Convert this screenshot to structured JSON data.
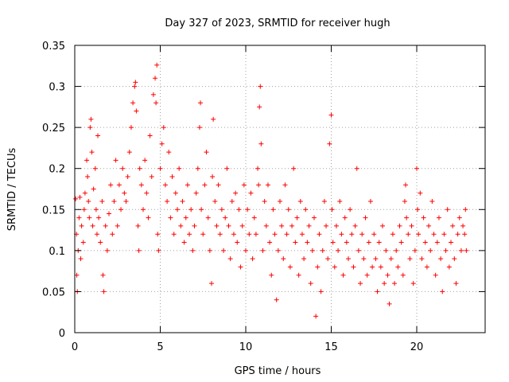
{
  "chart_data": {
    "type": "scatter",
    "title": "Day 327 of 2023, SRMTID for receiver hugh",
    "xlabel": "GPS time / hours",
    "ylabel": "SRMTID / TECUs",
    "xlim": [
      0,
      24
    ],
    "ylim": [
      0,
      0.35
    ],
    "xticks": [
      0,
      5,
      10,
      15,
      20
    ],
    "xtick_labels": [
      "0",
      "5",
      "10",
      "15",
      "20"
    ],
    "yticks": [
      0,
      0.05,
      0.1,
      0.15,
      0.2,
      0.25,
      0.3,
      0.35
    ],
    "ytick_labels": [
      "0",
      "0.05",
      "0.1",
      "0.15",
      "0.2",
      "0.25",
      "0.3",
      "0.35"
    ],
    "grid": true,
    "marker": "+",
    "color": "#ff0000",
    "series": [
      {
        "name": "SRMTID",
        "points": [
          [
            0.05,
            0.163
          ],
          [
            0.1,
            0.12
          ],
          [
            0.12,
            0.07
          ],
          [
            0.15,
            0.05
          ],
          [
            0.2,
            0.1
          ],
          [
            0.25,
            0.14
          ],
          [
            0.3,
            0.165
          ],
          [
            0.35,
            0.09
          ],
          [
            0.4,
            0.13
          ],
          [
            0.5,
            0.11
          ],
          [
            0.55,
            0.15
          ],
          [
            0.6,
            0.17
          ],
          [
            0.7,
            0.21
          ],
          [
            0.75,
            0.19
          ],
          [
            0.8,
            0.16
          ],
          [
            0.85,
            0.14
          ],
          [
            0.9,
            0.25
          ],
          [
            0.95,
            0.26
          ],
          [
            1.0,
            0.22
          ],
          [
            1.05,
            0.13
          ],
          [
            1.1,
            0.175
          ],
          [
            1.2,
            0.2
          ],
          [
            1.25,
            0.15
          ],
          [
            1.3,
            0.12
          ],
          [
            1.35,
            0.24
          ],
          [
            1.4,
            0.14
          ],
          [
            1.5,
            0.11
          ],
          [
            1.6,
            0.16
          ],
          [
            1.65,
            0.07
          ],
          [
            1.7,
            0.05
          ],
          [
            1.8,
            0.13
          ],
          [
            1.9,
            0.1
          ],
          [
            2.0,
            0.145
          ],
          [
            2.1,
            0.18
          ],
          [
            2.2,
            0.12
          ],
          [
            2.3,
            0.16
          ],
          [
            2.4,
            0.21
          ],
          [
            2.5,
            0.13
          ],
          [
            2.6,
            0.18
          ],
          [
            2.7,
            0.15
          ],
          [
            2.8,
            0.2
          ],
          [
            2.9,
            0.17
          ],
          [
            3.0,
            0.16
          ],
          [
            3.1,
            0.19
          ],
          [
            3.2,
            0.22
          ],
          [
            3.3,
            0.25
          ],
          [
            3.4,
            0.28
          ],
          [
            3.5,
            0.3
          ],
          [
            3.55,
            0.305
          ],
          [
            3.6,
            0.27
          ],
          [
            3.7,
            0.13
          ],
          [
            3.75,
            0.1
          ],
          [
            3.8,
            0.2
          ],
          [
            3.9,
            0.18
          ],
          [
            4.0,
            0.15
          ],
          [
            4.1,
            0.21
          ],
          [
            4.2,
            0.17
          ],
          [
            4.3,
            0.14
          ],
          [
            4.4,
            0.24
          ],
          [
            4.5,
            0.19
          ],
          [
            4.6,
            0.29
          ],
          [
            4.7,
            0.31
          ],
          [
            4.75,
            0.28
          ],
          [
            4.8,
            0.326
          ],
          [
            4.85,
            0.12
          ],
          [
            4.9,
            0.1
          ],
          [
            5.0,
            0.2
          ],
          [
            5.1,
            0.23
          ],
          [
            5.2,
            0.25
          ],
          [
            5.3,
            0.18
          ],
          [
            5.4,
            0.16
          ],
          [
            5.5,
            0.22
          ],
          [
            5.6,
            0.14
          ],
          [
            5.7,
            0.19
          ],
          [
            5.8,
            0.12
          ],
          [
            5.9,
            0.17
          ],
          [
            6.0,
            0.15
          ],
          [
            6.1,
            0.2
          ],
          [
            6.2,
            0.13
          ],
          [
            6.3,
            0.16
          ],
          [
            6.4,
            0.11
          ],
          [
            6.5,
            0.14
          ],
          [
            6.6,
            0.18
          ],
          [
            6.7,
            0.12
          ],
          [
            6.8,
            0.15
          ],
          [
            6.9,
            0.1
          ],
          [
            7.0,
            0.13
          ],
          [
            7.1,
            0.17
          ],
          [
            7.2,
            0.2
          ],
          [
            7.3,
            0.25
          ],
          [
            7.35,
            0.28
          ],
          [
            7.4,
            0.15
          ],
          [
            7.5,
            0.12
          ],
          [
            7.6,
            0.18
          ],
          [
            7.7,
            0.22
          ],
          [
            7.8,
            0.14
          ],
          [
            7.9,
            0.1
          ],
          [
            8.0,
            0.06
          ],
          [
            8.05,
            0.19
          ],
          [
            8.1,
            0.26
          ],
          [
            8.2,
            0.16
          ],
          [
            8.3,
            0.13
          ],
          [
            8.4,
            0.18
          ],
          [
            8.5,
            0.12
          ],
          [
            8.6,
            0.15
          ],
          [
            8.7,
            0.1
          ],
          [
            8.8,
            0.14
          ],
          [
            8.9,
            0.2
          ],
          [
            9.0,
            0.13
          ],
          [
            9.1,
            0.09
          ],
          [
            9.2,
            0.16
          ],
          [
            9.3,
            0.12
          ],
          [
            9.4,
            0.17
          ],
          [
            9.5,
            0.11
          ],
          [
            9.6,
            0.15
          ],
          [
            9.7,
            0.08
          ],
          [
            9.8,
            0.13
          ],
          [
            9.9,
            0.18
          ],
          [
            10.0,
            0.1
          ],
          [
            10.1,
            0.15
          ],
          [
            10.2,
            0.12
          ],
          [
            10.3,
            0.17
          ],
          [
            10.4,
            0.09
          ],
          [
            10.5,
            0.14
          ],
          [
            10.6,
            0.12
          ],
          [
            10.7,
            0.2
          ],
          [
            10.75,
            0.18
          ],
          [
            10.8,
            0.275
          ],
          [
            10.85,
            0.3
          ],
          [
            10.9,
            0.23
          ],
          [
            11.0,
            0.1
          ],
          [
            11.1,
            0.16
          ],
          [
            11.2,
            0.13
          ],
          [
            11.3,
            0.18
          ],
          [
            11.4,
            0.11
          ],
          [
            11.5,
            0.07
          ],
          [
            11.6,
            0.15
          ],
          [
            11.7,
            0.12
          ],
          [
            11.8,
            0.04
          ],
          [
            11.9,
            0.1
          ],
          [
            12.0,
            0.16
          ],
          [
            12.1,
            0.13
          ],
          [
            12.2,
            0.09
          ],
          [
            12.3,
            0.18
          ],
          [
            12.4,
            0.12
          ],
          [
            12.5,
            0.15
          ],
          [
            12.6,
            0.08
          ],
          [
            12.7,
            0.13
          ],
          [
            12.8,
            0.2
          ],
          [
            12.9,
            0.11
          ],
          [
            13.0,
            0.14
          ],
          [
            13.1,
            0.07
          ],
          [
            13.2,
            0.16
          ],
          [
            13.3,
            0.12
          ],
          [
            13.4,
            0.09
          ],
          [
            13.5,
            0.15
          ],
          [
            13.6,
            0.11
          ],
          [
            13.7,
            0.13
          ],
          [
            13.8,
            0.06
          ],
          [
            13.9,
            0.1
          ],
          [
            14.0,
            0.14
          ],
          [
            14.1,
            0.02
          ],
          [
            14.2,
            0.08
          ],
          [
            14.3,
            0.12
          ],
          [
            14.4,
            0.05
          ],
          [
            14.5,
            0.1
          ],
          [
            14.6,
            0.16
          ],
          [
            14.7,
            0.13
          ],
          [
            14.8,
            0.09
          ],
          [
            14.9,
            0.23
          ],
          [
            15.0,
            0.265
          ],
          [
            15.05,
            0.15
          ],
          [
            15.1,
            0.11
          ],
          [
            15.2,
            0.08
          ],
          [
            15.3,
            0.13
          ],
          [
            15.4,
            0.1
          ],
          [
            15.5,
            0.16
          ],
          [
            15.6,
            0.12
          ],
          [
            15.7,
            0.07
          ],
          [
            15.8,
            0.14
          ],
          [
            15.9,
            0.11
          ],
          [
            16.0,
            0.09
          ],
          [
            16.1,
            0.15
          ],
          [
            16.2,
            0.12
          ],
          [
            16.3,
            0.08
          ],
          [
            16.4,
            0.13
          ],
          [
            16.5,
            0.2
          ],
          [
            16.6,
            0.1
          ],
          [
            16.7,
            0.06
          ],
          [
            16.8,
            0.12
          ],
          [
            16.9,
            0.09
          ],
          [
            17.0,
            0.14
          ],
          [
            17.1,
            0.07
          ],
          [
            17.2,
            0.11
          ],
          [
            17.3,
            0.16
          ],
          [
            17.4,
            0.08
          ],
          [
            17.5,
            0.12
          ],
          [
            17.6,
            0.09
          ],
          [
            17.7,
            0.05
          ],
          [
            17.8,
            0.11
          ],
          [
            17.9,
            0.08
          ],
          [
            18.0,
            0.13
          ],
          [
            18.1,
            0.06
          ],
          [
            18.2,
            0.1
          ],
          [
            18.3,
            0.07
          ],
          [
            18.4,
            0.035
          ],
          [
            18.5,
            0.09
          ],
          [
            18.6,
            0.12
          ],
          [
            18.7,
            0.06
          ],
          [
            18.8,
            0.1
          ],
          [
            18.9,
            0.08
          ],
          [
            19.0,
            0.13
          ],
          [
            19.1,
            0.11
          ],
          [
            19.2,
            0.07
          ],
          [
            19.3,
            0.16
          ],
          [
            19.35,
            0.18
          ],
          [
            19.4,
            0.14
          ],
          [
            19.5,
            0.12
          ],
          [
            19.6,
            0.09
          ],
          [
            19.7,
            0.13
          ],
          [
            19.8,
            0.06
          ],
          [
            19.9,
            0.1
          ],
          [
            20.0,
            0.2
          ],
          [
            20.05,
            0.15
          ],
          [
            20.1,
            0.12
          ],
          [
            20.2,
            0.17
          ],
          [
            20.3,
            0.09
          ],
          [
            20.4,
            0.14
          ],
          [
            20.5,
            0.11
          ],
          [
            20.6,
            0.08
          ],
          [
            20.7,
            0.13
          ],
          [
            20.8,
            0.1
          ],
          [
            20.9,
            0.16
          ],
          [
            21.0,
            0.12
          ],
          [
            21.1,
            0.07
          ],
          [
            21.2,
            0.11
          ],
          [
            21.3,
            0.14
          ],
          [
            21.4,
            0.09
          ],
          [
            21.5,
            0.05
          ],
          [
            21.6,
            0.12
          ],
          [
            21.7,
            0.1
          ],
          [
            21.8,
            0.15
          ],
          [
            21.9,
            0.08
          ],
          [
            22.0,
            0.11
          ],
          [
            22.1,
            0.13
          ],
          [
            22.2,
            0.09
          ],
          [
            22.3,
            0.06
          ],
          [
            22.4,
            0.12
          ],
          [
            22.5,
            0.14
          ],
          [
            22.6,
            0.1
          ],
          [
            22.7,
            0.13
          ],
          [
            22.8,
            0.12
          ],
          [
            22.85,
            0.15
          ],
          [
            22.9,
            0.1
          ]
        ]
      }
    ]
  }
}
